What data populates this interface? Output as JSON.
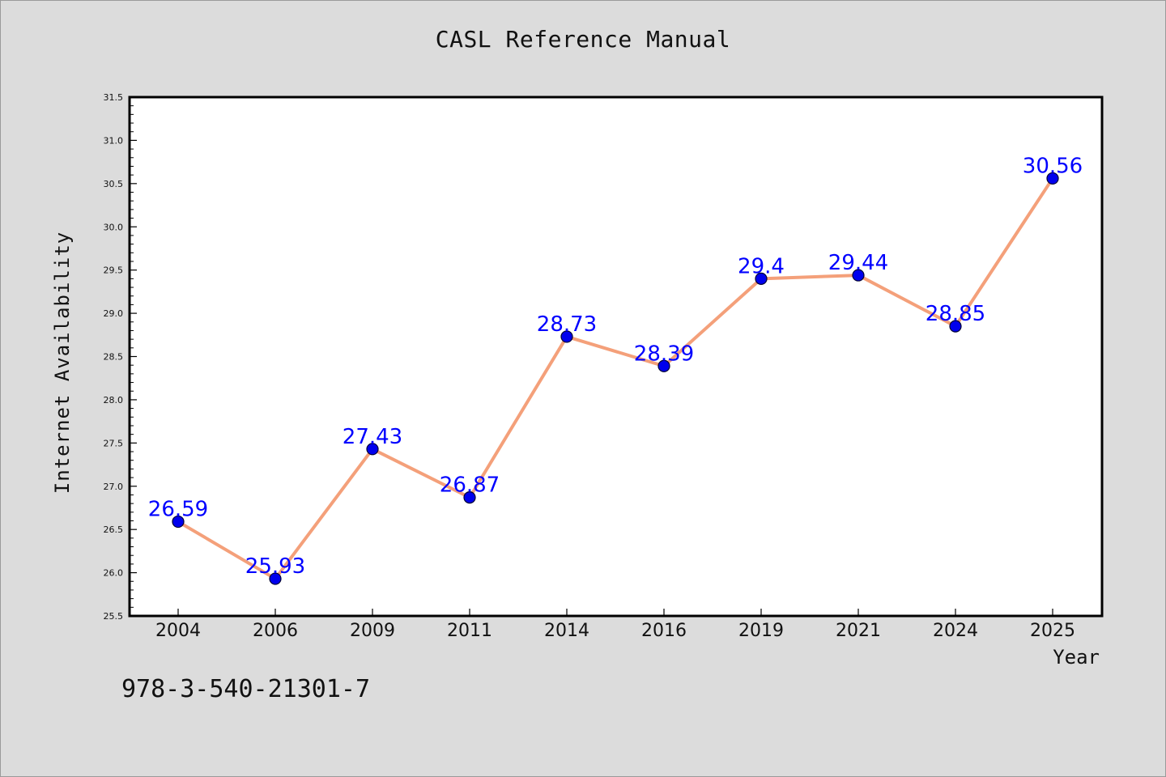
{
  "footer": {
    "isbn": "978-3-540-21301-7"
  },
  "chart_data": {
    "type": "line",
    "title": "CASL Reference Manual",
    "xlabel": "Year",
    "ylabel": "Internet Availability",
    "categories": [
      "2004",
      "2006",
      "2009",
      "2011",
      "2014",
      "2016",
      "2019",
      "2021",
      "2024",
      "2025"
    ],
    "series": [
      {
        "values": [
          26.59,
          25.93,
          27.43,
          26.87,
          28.73,
          28.39,
          29.4,
          29.44,
          28.85,
          30.56
        ],
        "data_labels": [
          "26.59",
          "25.93",
          "27.43",
          "26.87",
          "28.73",
          "28.39",
          "29.4",
          "29.44",
          "28.85",
          "30.56"
        ],
        "line_color": "#f4a07a",
        "marker_color": "#0000ee",
        "label_color": "#0000ff"
      }
    ],
    "ylim": [
      25.5,
      31.5
    ],
    "yticks": [
      "25.5",
      "26.0",
      "26.5",
      "27.0",
      "27.5",
      "28.0",
      "28.5",
      "29.0",
      "29.5",
      "30.0",
      "30.5",
      "31.0",
      "31.5"
    ],
    "grid": false,
    "legend": "none",
    "background": "#ffffff",
    "figure_background": "#dcdcdc"
  }
}
